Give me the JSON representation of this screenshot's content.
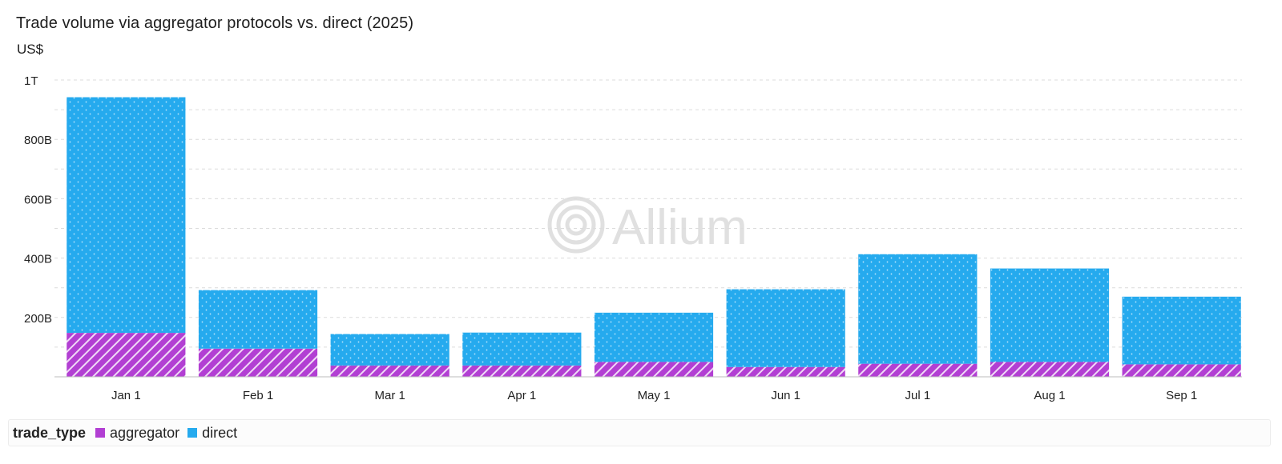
{
  "colors": {
    "aggregator": "#b23fd3",
    "direct": "#25aaee",
    "grid": "#dcdcdc",
    "axis": "#bdbdbd"
  },
  "watermark": {
    "text": "Allium",
    "icon": "allium-logo-icon"
  },
  "legend": {
    "title": "trade_type",
    "items": [
      {
        "label": "aggregator",
        "color": "#b23fd3"
      },
      {
        "label": "direct",
        "color": "#25aaee"
      }
    ]
  },
  "chart_data": {
    "type": "bar",
    "stacked": true,
    "title": "Trade volume via aggregator protocols vs. direct (2025)",
    "ylabel": "US$",
    "xlabel": "",
    "categories": [
      "Jan 1",
      "Feb 1",
      "Mar 1",
      "Apr 1",
      "May 1",
      "Jun 1",
      "Jul 1",
      "Aug 1",
      "Sep 1"
    ],
    "series": [
      {
        "name": "aggregator",
        "values": [
          148,
          95,
          38,
          38,
          50,
          33,
          44,
          50,
          42
        ]
      },
      {
        "name": "direct",
        "values": [
          794,
          197,
          106,
          111,
          166,
          262,
          369,
          315,
          228
        ]
      }
    ],
    "ylim": [
      0,
      1000
    ],
    "yticks": [
      {
        "value": 200,
        "label": "200B"
      },
      {
        "value": 400,
        "label": "400B"
      },
      {
        "value": 600,
        "label": "600B"
      },
      {
        "value": 800,
        "label": "800B"
      },
      {
        "value": 1000,
        "label": "1T"
      }
    ],
    "grid": true,
    "legend_position": "bottom"
  }
}
